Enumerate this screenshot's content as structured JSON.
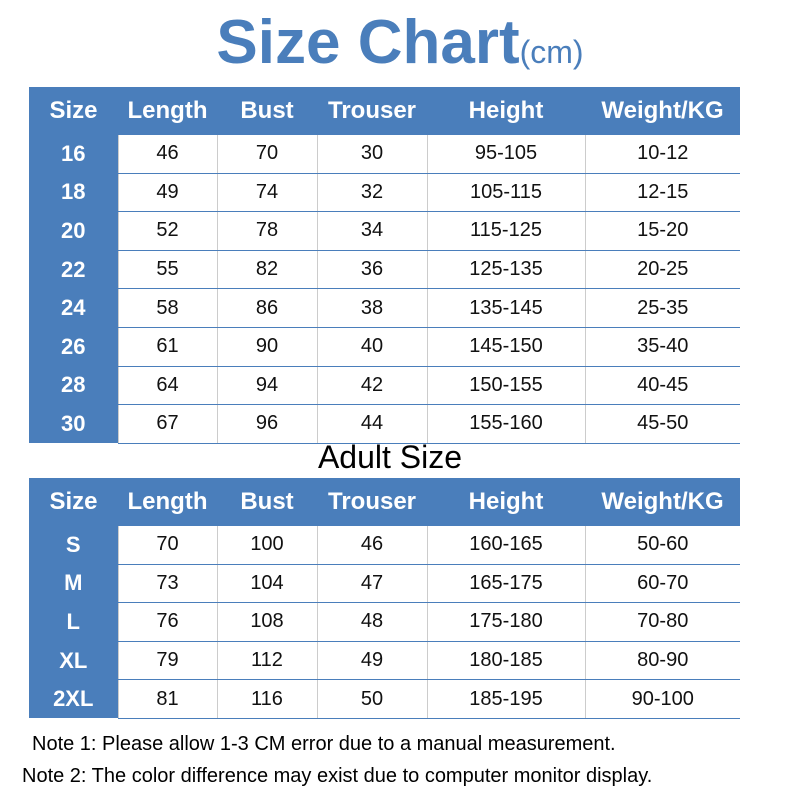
{
  "title": "Size Chart",
  "unit": "(cm)",
  "columns": [
    "Size",
    "Length",
    "Bust",
    "Trouser",
    "Height",
    "Weight/KG"
  ],
  "kids_rows": [
    [
      "16",
      "46",
      "70",
      "30",
      "95-105",
      "10-12"
    ],
    [
      "18",
      "49",
      "74",
      "32",
      "105-115",
      "12-15"
    ],
    [
      "20",
      "52",
      "78",
      "34",
      "115-125",
      "15-20"
    ],
    [
      "22",
      "55",
      "82",
      "36",
      "125-135",
      "20-25"
    ],
    [
      "24",
      "58",
      "86",
      "38",
      "135-145",
      "25-35"
    ],
    [
      "26",
      "61",
      "90",
      "40",
      "145-150",
      "35-40"
    ],
    [
      "28",
      "64",
      "94",
      "42",
      "150-155",
      "40-45"
    ],
    [
      "30",
      "67",
      "96",
      "44",
      "155-160",
      "45-50"
    ]
  ],
  "adult_title": "Adult Size",
  "adult_rows": [
    [
      "S",
      "70",
      "100",
      "46",
      "160-165",
      "50-60"
    ],
    [
      "M",
      "73",
      "104",
      "47",
      "165-175",
      "60-70"
    ],
    [
      "L",
      "76",
      "108",
      "48",
      "175-180",
      "70-80"
    ],
    [
      "XL",
      "79",
      "112",
      "49",
      "180-185",
      "80-90"
    ],
    [
      "2XL",
      "81",
      "116",
      "50",
      "185-195",
      "90-100"
    ]
  ],
  "notes": [
    "Note 1: Please allow 1-3 CM error due to a manual measurement.",
    "Note 2: The color difference may exist due to computer monitor display."
  ],
  "colors": {
    "accent": "#4a7ebb"
  }
}
